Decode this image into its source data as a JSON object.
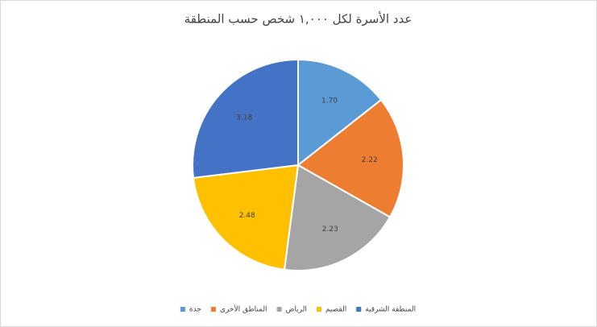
{
  "chart_data": {
    "type": "pie",
    "title": "عدد الأسرة لكل ١,٠٠٠ شخص حسب المنطقة",
    "categories": [
      "جدة",
      "المناطق الأخرى",
      "الرياض",
      "القصيم",
      "المنطقة الشرقية"
    ],
    "values": [
      1.7,
      2.22,
      2.23,
      2.48,
      3.18
    ],
    "value_labels": [
      "1.70",
      "2.22",
      "2.23",
      "2.48",
      "3.18"
    ],
    "colors": [
      "#5b9bd5",
      "#ed7d31",
      "#a5a5a5",
      "#ffc000",
      "#4472c4"
    ],
    "legend": "bottom"
  }
}
